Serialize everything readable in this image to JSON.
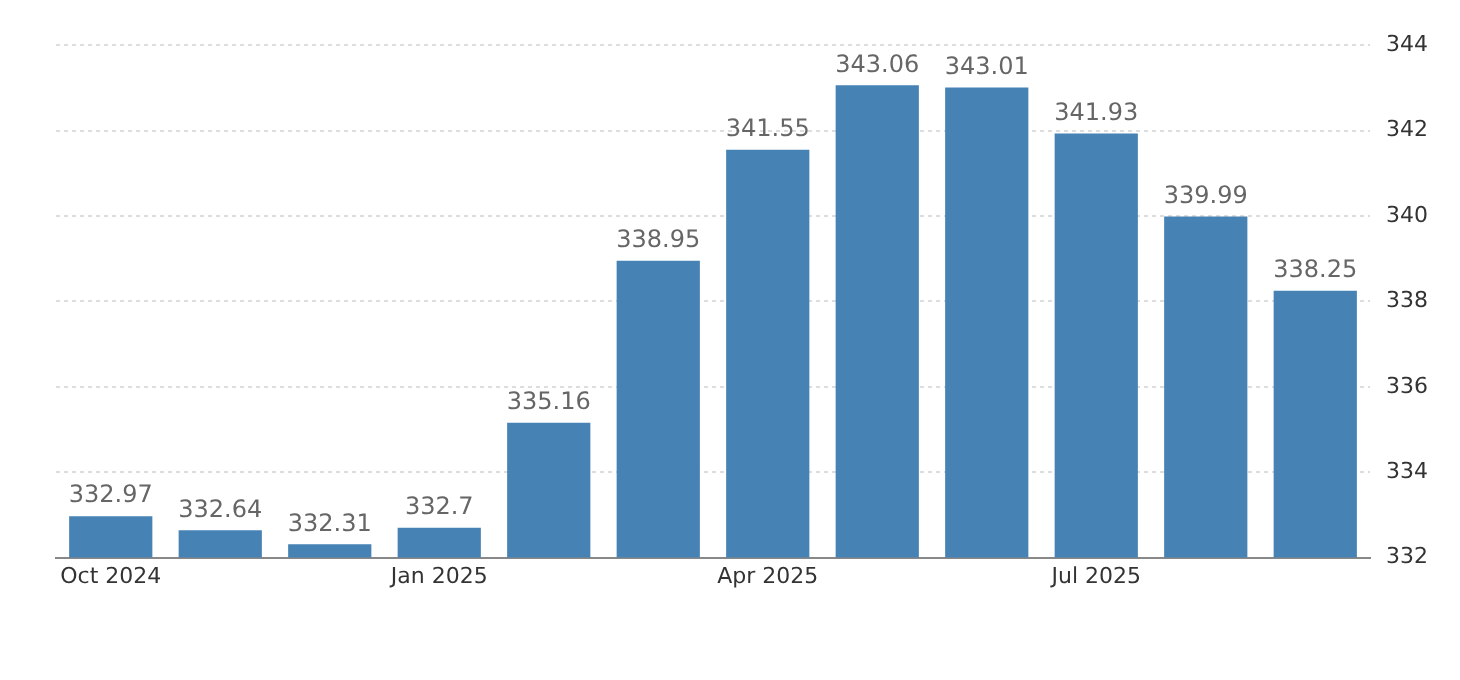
{
  "chart_data": {
    "type": "bar",
    "categories": [
      "Oct 2024",
      null,
      null,
      "Jan 2025",
      null,
      null,
      "Apr 2025",
      null,
      null,
      "Jul 2025",
      null,
      null
    ],
    "values": [
      332.97,
      332.64,
      332.31,
      332.7,
      335.16,
      338.95,
      341.55,
      343.06,
      343.01,
      341.93,
      339.99,
      338.25
    ],
    "color": "#4682b4",
    "ylim": [
      332,
      344
    ],
    "yticks": [
      332,
      334,
      336,
      338,
      340,
      342,
      344
    ],
    "grid": "y",
    "data_labels": true,
    "legend": false
  }
}
